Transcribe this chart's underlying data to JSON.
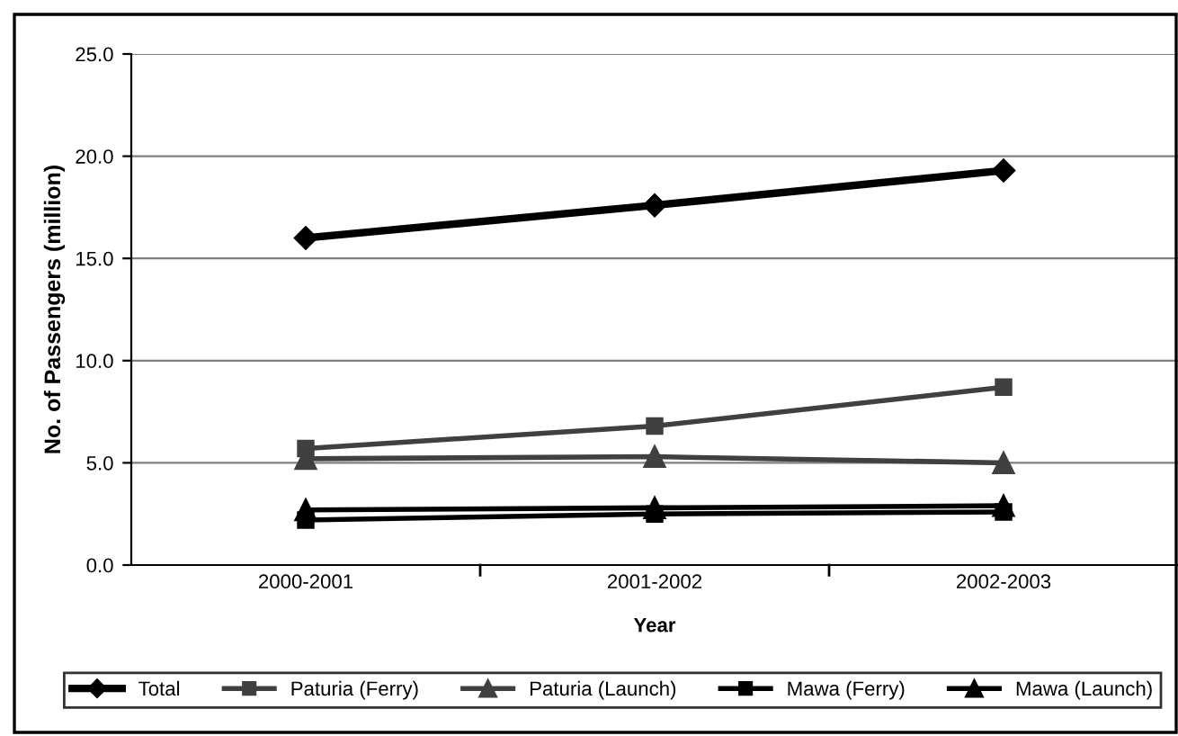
{
  "chart_data": {
    "type": "line",
    "xlabel": "Year",
    "ylabel": "No. of Passengers (million)",
    "categories": [
      "2000-2001",
      "2001-2002",
      "2002-2003"
    ],
    "series": [
      {
        "name": "Total",
        "color": "#000000",
        "marker": "diamond",
        "values": [
          16.0,
          17.6,
          19.3
        ]
      },
      {
        "name": "Paturia (Ferry)",
        "color": "#404040",
        "marker": "square",
        "values": [
          5.7,
          6.8,
          8.7
        ]
      },
      {
        "name": "Paturia (Launch)",
        "color": "#404040",
        "marker": "triangle",
        "values": [
          5.2,
          5.3,
          5.0
        ]
      },
      {
        "name": "Mawa (Ferry)",
        "color": "#000000",
        "marker": "square",
        "values": [
          2.2,
          2.5,
          2.6
        ]
      },
      {
        "name": "Mawa (Launch)",
        "color": "#000000",
        "marker": "triangle",
        "values": [
          2.7,
          2.8,
          2.9
        ]
      }
    ],
    "ylim": [
      0,
      25
    ],
    "yticks": [
      {
        "value": 0,
        "label": "0.0"
      },
      {
        "value": 5,
        "label": "5.0"
      },
      {
        "value": 10,
        "label": "10.0"
      },
      {
        "value": 15,
        "label": "15.0"
      },
      {
        "value": 20,
        "label": "20.0"
      },
      {
        "value": 25,
        "label": "25.0"
      }
    ],
    "grid": "y",
    "legend": "bottom"
  }
}
